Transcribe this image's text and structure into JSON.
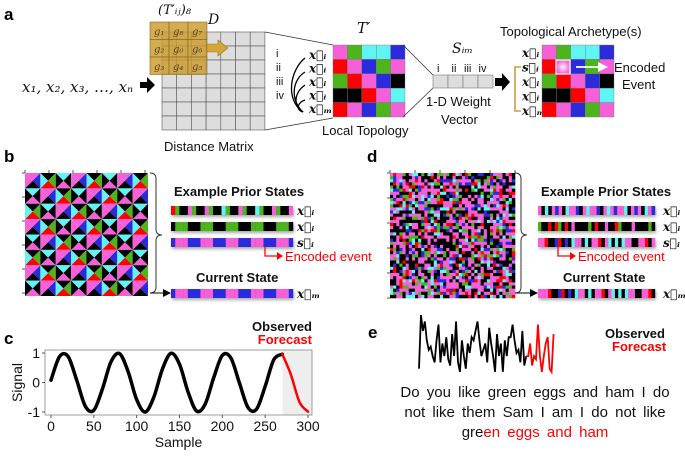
{
  "palette": {
    "P": "#f55fd8",
    "G": "#4cb51c",
    "C": "#5ff5f5",
    "B": "#2b2bdc",
    "R": "#ff0000",
    "K": "#000000"
  },
  "panel_a": {
    "label": "a",
    "sequence": "x₁, x₂, x₃, …, xₙ",
    "kernel_label": "(T′ᵢⱼ)₈",
    "d_label": "D",
    "kernel_cells": [
      "g₁",
      "g₈",
      "g₇",
      "g₂",
      "g₀",
      "g₆",
      "g₃",
      "g₄",
      "g₅"
    ],
    "distance_matrix_label": "Distance Matrix",
    "romans": [
      "i",
      "ii",
      "iii",
      "iv"
    ],
    "vectors": [
      "x⃗ᵢ",
      "x⃗ᵢ",
      "x⃗ᵢ",
      "x⃗ᵢ",
      "x⃗ₘ"
    ],
    "t_prime_label": "T′",
    "local_topology_label": "Local Topology",
    "local_topology_grid": [
      "PGCCB",
      "RPBGP",
      "GRPBK",
      "KKRPC",
      "RPBGP"
    ],
    "sim_label": "Sᵢₘ",
    "weight_vector_label_1": "1-D Weight",
    "weight_vector_label_2": "Vector",
    "archetype_title": "Topological Archetype(s)",
    "archetype_vectors": [
      "x⃗ᵢ",
      "s⃗ᵢ",
      "x⃗ᵢ",
      "x⃗ᵢ",
      "x⃗ₘ"
    ],
    "encoded_event_1": "Encoded",
    "encoded_event_2": "Event"
  },
  "panel_b": {
    "label": "b",
    "prior_title": "Example Prior States",
    "bars": [
      {
        "label": "x⃗ᵢ",
        "pattern": "RGKKPGKKPGKKCGKKPGKKCGKKPGKKP"
      },
      {
        "label": "x⃗ᵢ",
        "pattern": "KGGGKKKGGGKKKGGGKKKGGGKKKGGGK"
      },
      {
        "label": "s⃗ᵢ",
        "pattern": "BPPPBBBPPPBBBPPPBBBPPPBBBPPPB"
      }
    ],
    "encoded_event": "Encoded event",
    "current_title": "Current State",
    "current_bar": {
      "label": "x⃗ₘ",
      "pattern": "BPPPBBBPPPBBBPPPBBBPPPBBBPPPB"
    }
  },
  "panel_d": {
    "label": "d",
    "prior_title": "Example Prior States",
    "bars": [
      {
        "label": "x⃗ᵢ",
        "pattern": "PKCKPBPKCPPBKPCPPBKPCPBPPCKPBPKCPB"
      },
      {
        "label": "x⃗ᵢ",
        "pattern": "GKKRKRGKRKPKKKKGKRKKPKKRGKKKPKKKKGK"
      },
      {
        "label": "s⃗ᵢ",
        "pattern": "PPRKKBRKBKCPPKCKPPRKPCKCKCPPKKPPRKP"
      }
    ],
    "encoded_event": "Encoded event",
    "current_title": "Current State",
    "current_bar": {
      "label": "x⃗ₘ",
      "pattern": "PPPRKKBRKBKCPPKCKPPRKPCKCKCPPKKPPRK"
    }
  },
  "panel_e": {
    "label": "e",
    "observed": "Observed",
    "forecast": "Forecast",
    "observed_series": [
      0.1,
      0.95,
      0.7,
      0.85,
      0.55,
      0.4,
      0.45,
      0.3,
      0.2,
      0.55,
      0.8,
      0.2,
      0.5,
      0.3,
      0.6,
      0.25,
      0.15,
      0.65,
      0.3,
      0.85,
      0.2,
      0.05,
      0.55,
      0.3,
      0.1,
      0.5,
      0.35,
      0.6,
      0.55,
      0.7,
      0.85,
      0.55,
      0.3,
      0.4,
      0.5,
      0.2,
      0.75,
      0.5,
      0.3,
      0.05,
      0.65,
      0.3,
      0.5,
      0.05,
      0.55,
      0.3,
      0.6,
      0.6,
      0.8,
      0.55,
      0.35,
      0.4,
      0.2,
      0.7,
      0.15,
      0.3
    ],
    "forecast_series": [
      0.3,
      0.5,
      0.15,
      0.3,
      0.25,
      0.8,
      0.3,
      0.05,
      0.3,
      0.5,
      0.6,
      0.1,
      0.05,
      0.65
    ],
    "text_lines": [
      "Do you like green eggs and ham I do",
      "not like them Sam I am I do not like"
    ],
    "last_line_observed": "gre",
    "last_line_forecast": "en eggs and ham"
  },
  "chart_data": {
    "type": "line",
    "panel_label": "c",
    "title": "",
    "xlabel": "Sample",
    "ylabel": "Signal",
    "xlim": [
      0,
      300
    ],
    "ylim": [
      -1,
      1
    ],
    "xticks": [
      "0",
      "50",
      "100",
      "150",
      "200",
      "250",
      "300"
    ],
    "yticks": [
      "1",
      "0",
      "-1"
    ],
    "legend": [
      "Observed",
      "Forecast"
    ],
    "legend_placement": "top-right",
    "shaded_forecast_region": [
      270,
      300
    ],
    "series": [
      {
        "name": "Observed",
        "color": "#000000",
        "x": [
          0,
          10,
          20,
          30,
          40,
          50,
          60,
          70,
          80,
          90,
          100,
          110,
          120,
          130,
          140,
          150,
          160,
          170,
          180,
          190,
          200,
          210,
          220,
          230,
          240,
          250,
          260,
          270
        ],
        "y": [
          0.08,
          0.88,
          0.88,
          0.08,
          -0.8,
          -0.94,
          -0.22,
          0.7,
          0.98,
          0.37,
          -0.58,
          -1.0,
          -0.5,
          0.45,
          0.99,
          0.62,
          -0.32,
          -0.97,
          -0.73,
          0.17,
          0.92,
          0.83,
          -0.02,
          -0.85,
          -0.9,
          -0.13,
          0.77,
          0.96
        ]
      },
      {
        "name": "Forecast",
        "color": "#ff0000",
        "x": [
          270,
          280,
          290,
          300
        ],
        "y": [
          0.96,
          0.27,
          -0.66,
          -0.99
        ]
      }
    ]
  }
}
